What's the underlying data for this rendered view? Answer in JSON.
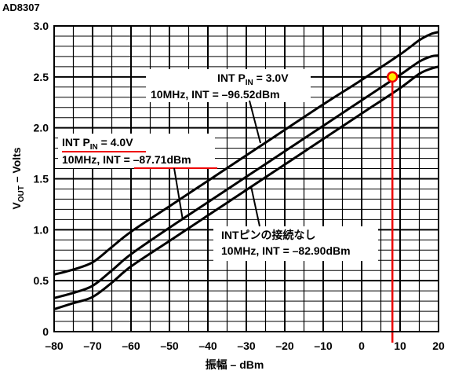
{
  "figure_caption": "AD8307",
  "chart_data": {
    "type": "line",
    "xlabel": "振幅 – dBm",
    "ylabel_main": "V",
    "ylabel_sub": "OUT",
    "ylabel_rest": " – Volts",
    "xlim": [
      -80,
      20
    ],
    "ylim": [
      0,
      3.0
    ],
    "xticks": [
      -80,
      -70,
      -60,
      -50,
      -40,
      -30,
      -20,
      -10,
      0,
      10,
      20
    ],
    "yticks": [
      0,
      0.5,
      1.0,
      1.5,
      2.0,
      2.5,
      3.0
    ],
    "xtick_labels": [
      "–80",
      "–70",
      "–60",
      "–50",
      "–40",
      "–30",
      "–20",
      "–10",
      "0",
      "10",
      "20"
    ],
    "ytick_labels": [
      "0",
      "0.5",
      "1.0",
      "1.5",
      "2.0",
      "2.5",
      "3.0"
    ],
    "grid": true,
    "series": [
      {
        "x": [
          -80,
          -75,
          -70,
          -65,
          -60,
          -50,
          -40,
          -30,
          -20,
          -10,
          0,
          10,
          15,
          18,
          20
        ],
        "y": [
          0.56,
          0.61,
          0.68,
          0.83,
          0.98,
          1.23,
          1.48,
          1.73,
          1.98,
          2.23,
          2.47,
          2.72,
          2.86,
          2.92,
          2.94
        ],
        "color": "#000000"
      },
      {
        "x": [
          -80,
          -75,
          -70,
          -65,
          -60,
          -50,
          -40,
          -30,
          -20,
          -10,
          0,
          10,
          15,
          18,
          20
        ],
        "y": [
          0.33,
          0.38,
          0.45,
          0.6,
          0.76,
          1.02,
          1.27,
          1.52,
          1.77,
          2.02,
          2.27,
          2.52,
          2.65,
          2.7,
          2.71
        ],
        "color": "#000000"
      },
      {
        "x": [
          -80,
          -75,
          -70,
          -65,
          -60,
          -50,
          -40,
          -30,
          -20,
          -10,
          0,
          10,
          15,
          18,
          20
        ],
        "y": [
          0.22,
          0.28,
          0.34,
          0.48,
          0.64,
          0.89,
          1.14,
          1.39,
          1.64,
          1.89,
          2.14,
          2.39,
          2.53,
          2.58,
          2.6
        ],
        "color": "#000000"
      }
    ],
    "annotations": [
      {
        "line1_main": "INT P",
        "line1_sub": "IN",
        "line1_rest": " = 3.0V",
        "line2": "10MHz, INT = –96.52dBm"
      },
      {
        "line1_main": "INT P",
        "line1_sub": "IN",
        "line1_rest": " = 4.0V",
        "line2": "10MHz, INT = –87.71dBm"
      },
      {
        "line1": "INTピンの接続なし",
        "line2": "10MHz, INT = –82.90dBm"
      }
    ],
    "marker": {
      "x": 8,
      "y": 2.5,
      "color": "#ffee00",
      "edge_color": "#ee0000"
    },
    "highlight_color": "#ee0000"
  }
}
